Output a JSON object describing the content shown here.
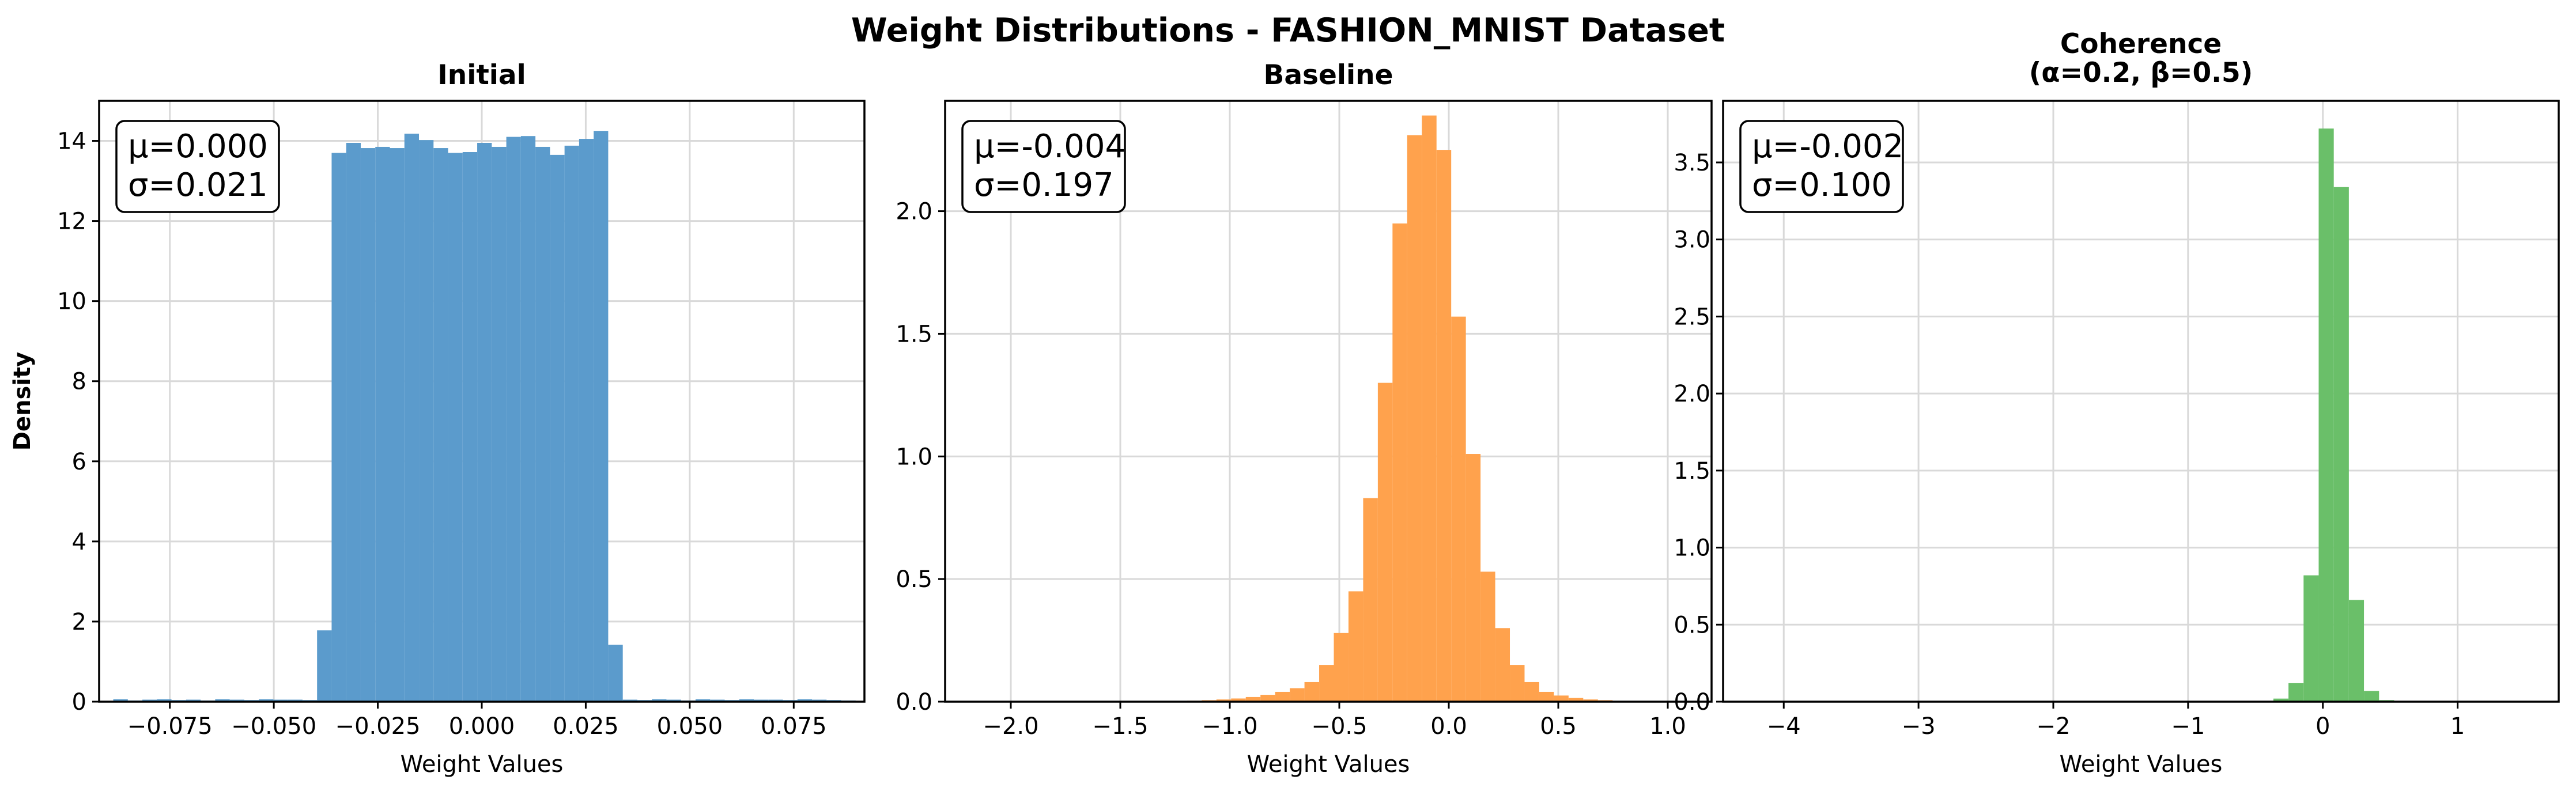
{
  "figure_title": "Weight Distributions - FASHION_MNIST Dataset",
  "chart_data": [
    {
      "type": "histogram",
      "title": "Initial",
      "xlabel": "Weight Values",
      "ylabel": "Density",
      "color": "#5b9bcc",
      "xlim": [
        -0.092,
        0.092
      ],
      "ylim": [
        0,
        15
      ],
      "xticks": [
        -0.075,
        -0.05,
        -0.025,
        0.0,
        0.025,
        0.05,
        0.075
      ],
      "xtick_labels": [
        "−0.075",
        "−0.050",
        "−0.025",
        "0.000",
        "0.025",
        "0.050",
        "0.075"
      ],
      "yticks": [
        0,
        2,
        4,
        6,
        8,
        10,
        12,
        14
      ],
      "ytick_labels": [
        "0",
        "2",
        "4",
        "6",
        "8",
        "10",
        "12",
        "14"
      ],
      "stats": {
        "mean": "μ=0.000",
        "std": "σ=0.021"
      },
      "bin_edges": [
        -0.0886,
        -0.0851,
        -0.0816,
        -0.0781,
        -0.0746,
        -0.0711,
        -0.0676,
        -0.0641,
        -0.0606,
        -0.0571,
        -0.0536,
        -0.0501,
        -0.0466,
        -0.0431,
        -0.0396,
        -0.0361,
        -0.0326,
        -0.0291,
        -0.0256,
        -0.0221,
        -0.0186,
        -0.0151,
        -0.0116,
        -0.0081,
        -0.0046,
        -0.0011,
        0.0024,
        0.0059,
        0.0094,
        0.0129,
        0.0164,
        0.0199,
        0.0234,
        0.0269,
        0.0304,
        0.0339,
        0.0374,
        0.0409,
        0.0444,
        0.0479,
        0.0514,
        0.0549,
        0.0584,
        0.0619,
        0.0654,
        0.0689,
        0.0724,
        0.0759,
        0.0794,
        0.0829,
        0.0864,
        0.0899
      ],
      "values": [
        0.06,
        0.03,
        0.05,
        0.06,
        0.04,
        0.05,
        0.03,
        0.06,
        0.05,
        0.04,
        0.06,
        0.05,
        0.05,
        0.04,
        1.78,
        13.7,
        13.95,
        13.82,
        13.85,
        13.82,
        14.18,
        14.02,
        13.82,
        13.7,
        13.72,
        13.95,
        13.85,
        14.1,
        14.12,
        13.85,
        13.65,
        13.88,
        14.05,
        14.25,
        1.42,
        0.05,
        0.04,
        0.06,
        0.05,
        0.03,
        0.06,
        0.05,
        0.04,
        0.06,
        0.05,
        0.05,
        0.04,
        0.06,
        0.05,
        0.04,
        0.03
      ]
    },
    {
      "type": "histogram",
      "title": "Baseline",
      "xlabel": "Weight Values",
      "color": "#ffa24d",
      "xlim": [
        -2.3,
        1.2
      ],
      "ylim": [
        0,
        2.45
      ],
      "xticks": [
        -2.0,
        -1.5,
        -1.0,
        -0.5,
        0.0,
        0.5,
        1.0
      ],
      "xtick_labels": [
        "−2.0",
        "−1.5",
        "−1.0",
        "−0.5",
        "0.0",
        "0.5",
        "1.0"
      ],
      "yticks": [
        0.0,
        0.5,
        1.0,
        1.5,
        2.0
      ],
      "ytick_labels": [
        "0.0",
        "0.5",
        "1.0",
        "1.5",
        "2.0"
      ],
      "stats": {
        "mean": "μ=-0.004",
        "std": "σ=0.197"
      },
      "bin_edges": [
        -2.2,
        -2.133,
        -2.066,
        -1.999,
        -1.932,
        -1.865,
        -1.798,
        -1.731,
        -1.664,
        -1.597,
        -1.53,
        -1.463,
        -1.396,
        -1.329,
        -1.262,
        -1.195,
        -1.128,
        -1.061,
        -0.994,
        -0.927,
        -0.86,
        -0.793,
        -0.726,
        -0.659,
        -0.592,
        -0.525,
        -0.458,
        -0.391,
        -0.324,
        -0.257,
        -0.19,
        -0.123,
        -0.056,
        0.011,
        0.078,
        0.145,
        0.212,
        0.279,
        0.346,
        0.413,
        0.48,
        0.547,
        0.614,
        0.681,
        0.748,
        0.815,
        0.882,
        0.949,
        1.016,
        1.083,
        1.15
      ],
      "values": [
        0.001,
        0.0,
        0.0,
        0.0,
        0.0,
        0.0,
        0.0,
        0.0,
        0.0,
        0.0,
        0.0,
        0.0,
        0.002,
        0.002,
        0.003,
        0.004,
        0.006,
        0.009,
        0.013,
        0.019,
        0.028,
        0.04,
        0.055,
        0.08,
        0.15,
        0.28,
        0.45,
        0.83,
        1.3,
        1.95,
        2.31,
        2.39,
        2.25,
        1.57,
        1.01,
        0.53,
        0.3,
        0.15,
        0.08,
        0.04,
        0.025,
        0.015,
        0.009,
        0.006,
        0.003,
        0.002,
        0.001,
        0.001,
        0.0,
        0.0
      ]
    },
    {
      "type": "histogram",
      "title": "Coherence\n(α=0.2, β=0.5)",
      "xlabel": "Weight Values",
      "color": "#6abf69",
      "xlim": [
        -4.45,
        1.75
      ],
      "ylim": [
        0,
        3.9
      ],
      "xticks": [
        -4,
        -3,
        -2,
        -1,
        0,
        1
      ],
      "xtick_labels": [
        "−4",
        "−3",
        "−2",
        "−1",
        "0",
        "1"
      ],
      "yticks": [
        0.0,
        0.5,
        1.0,
        1.5,
        2.0,
        2.5,
        3.0,
        3.5
      ],
      "ytick_labels": [
        "0.0",
        "0.5",
        "1.0",
        "1.5",
        "2.0",
        "2.5",
        "3.0",
        "3.5"
      ],
      "stats": {
        "mean": "μ=-0.002",
        "std": "σ=0.100"
      },
      "bin_edges": [
        -4.175,
        -4.063,
        -3.951,
        -3.839,
        -3.727,
        -3.615,
        -3.503,
        -3.391,
        -3.279,
        -3.167,
        -3.055,
        -2.943,
        -2.831,
        -2.719,
        -2.607,
        -2.495,
        -2.383,
        -2.271,
        -2.159,
        -2.047,
        -1.935,
        -1.823,
        -1.711,
        -1.599,
        -1.487,
        -1.375,
        -1.263,
        -1.151,
        -1.039,
        -0.927,
        -0.815,
        -0.703,
        -0.591,
        -0.479,
        -0.367,
        -0.255,
        -0.143,
        -0.031,
        0.081,
        0.193,
        0.305,
        0.417,
        0.529,
        0.641,
        0.753,
        0.865,
        0.977,
        1.089,
        1.201,
        1.313,
        1.425
      ],
      "values": [
        0.0,
        0.0,
        0.0,
        0.0,
        0.0,
        0.0,
        0.0,
        0.0,
        0.0,
        0.0,
        0.0,
        0.0,
        0.0,
        0.0,
        0.0,
        0.0,
        0.0,
        0.0,
        0.0,
        0.0,
        0.0,
        0.0,
        0.0,
        0.0,
        0.0,
        0.0,
        0.0,
        0.0,
        0.0,
        0.0,
        0.0,
        0.001,
        0.002,
        0.005,
        0.02,
        0.12,
        0.82,
        3.72,
        3.34,
        0.66,
        0.07,
        0.01,
        0.002,
        0.0,
        0.0,
        0.0,
        0.0,
        0.0,
        0.0,
        0.0
      ]
    }
  ]
}
